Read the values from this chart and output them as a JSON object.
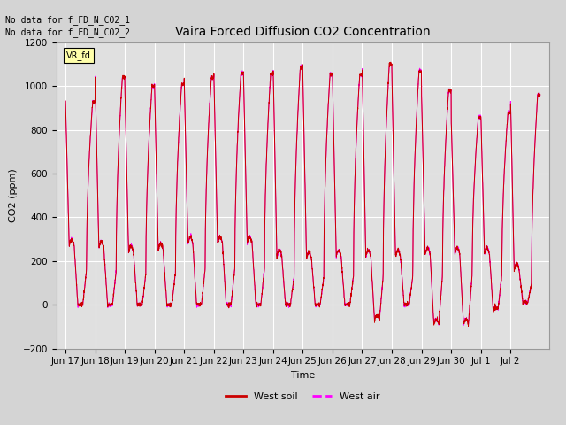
{
  "title": "Vaira Forced Diffusion CO2 Concentration",
  "ylabel": "CO2 (ppm)",
  "xlabel": "Time",
  "ylim": [
    -200,
    1200
  ],
  "yticks": [
    -200,
    0,
    200,
    400,
    600,
    800,
    1000,
    1200
  ],
  "x_tick_labels": [
    "Jun 17",
    "Jun 18",
    "Jun 19",
    "Jun 20",
    "Jun 21",
    "Jun 22",
    "Jun 23",
    "Jun 24",
    "Jun 25",
    "Jun 26",
    "Jun 27",
    "Jun 28",
    "Jun 29",
    "Jun 30",
    "Jul 1",
    "Jul 2"
  ],
  "soil_color": "#cc0000",
  "air_color": "#ff00ff",
  "legend_label_soil": "West soil",
  "legend_label_air": "West air",
  "no_data_text1": "No data for f_FD_N_CO2_1",
  "no_data_text2": "No data for f_FD_N_CO2_2",
  "vr_fd_label": "VR_fd",
  "fig_bg_color": "#d4d4d4",
  "plot_bg_color": "#e0e0e0",
  "grid_color": "#ffffff",
  "title_fontsize": 10,
  "axis_fontsize": 8,
  "tick_fontsize": 7.5,
  "peaks": [
    930,
    1040,
    1000,
    1010,
    1040,
    1060,
    1055,
    1090,
    1055,
    1050,
    1100,
    1070,
    980,
    860,
    880,
    960
  ],
  "troughs": [
    0,
    0,
    0,
    0,
    0,
    0,
    0,
    0,
    0,
    0,
    -70,
    0,
    -90,
    -90,
    -20,
    10
  ],
  "shoulder_vals": [
    270,
    260,
    240,
    250,
    280,
    280,
    280,
    220,
    210,
    220,
    220,
    220,
    230,
    230,
    230,
    160
  ],
  "n_days": 16
}
